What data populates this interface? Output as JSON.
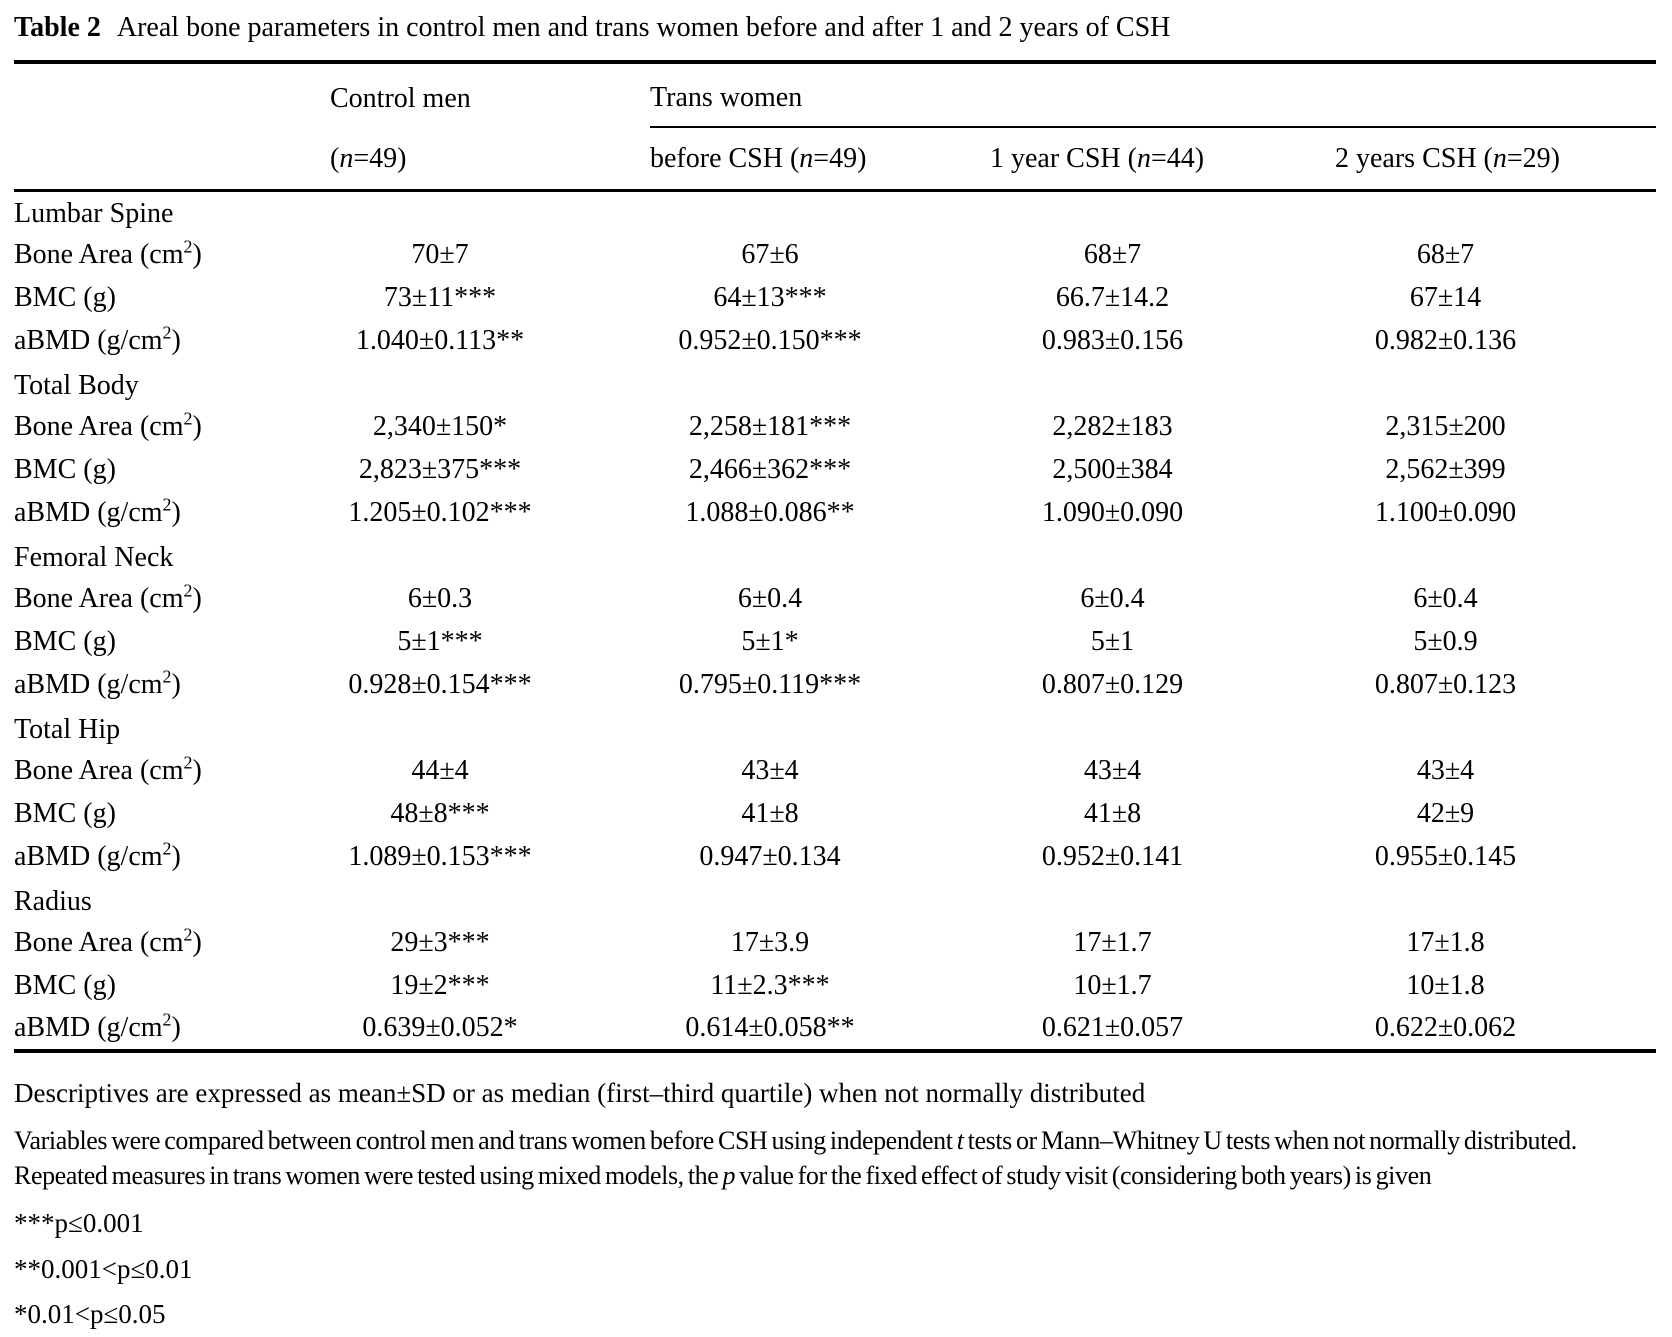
{
  "title": {
    "label": "Table 2",
    "text": "Areal bone parameters in control men and trans women before and after 1 and 2 years of CSH"
  },
  "header": {
    "control_group": "Control men",
    "trans_group": "Trans women",
    "subheaders": [
      "(<i>n</i>=49)",
      "before CSH (<i>n</i>=49)",
      "1 year CSH (<i>n</i>=44)",
      "2 years CSH (<i>n</i>=29)"
    ]
  },
  "table": {
    "sections": [
      {
        "name": "Lumbar Spine",
        "rows": [
          {
            "label": "Bone Area (cm<sup>2</sup>)",
            "values": [
              "70±7",
              "67±6",
              "68±7",
              "68±7"
            ]
          },
          {
            "label": "BMC (g)",
            "values": [
              "73±11***",
              "64±13***",
              "66.7±14.2",
              "67±14"
            ]
          },
          {
            "label": "aBMD (g/cm<sup>2</sup>)",
            "values": [
              "1.040±0.113**",
              "0.952±0.150***",
              "0.983±0.156",
              "0.982±0.136"
            ]
          }
        ]
      },
      {
        "name": "Total Body",
        "rows": [
          {
            "label": "Bone Area (cm<sup>2</sup>)",
            "values": [
              "2,340±150*",
              "2,258±181***",
              "2,282±183",
              "2,315±200"
            ]
          },
          {
            "label": "BMC (g)",
            "values": [
              "2,823±375***",
              "2,466±362***",
              "2,500±384",
              "2,562±399"
            ]
          },
          {
            "label": "aBMD (g/cm<sup>2</sup>)",
            "values": [
              "1.205±0.102***",
              "1.088±0.086**",
              "1.090±0.090",
              "1.100±0.090"
            ]
          }
        ]
      },
      {
        "name": "Femoral Neck",
        "rows": [
          {
            "label": "Bone Area (cm<sup>2</sup>)",
            "values": [
              "6±0.3",
              "6±0.4",
              "6±0.4",
              "6±0.4"
            ]
          },
          {
            "label": "BMC (g)",
            "values": [
              "5±1***",
              "5±1*",
              "5±1",
              "5±0.9"
            ]
          },
          {
            "label": "aBMD (g/cm<sup>2</sup>)",
            "values": [
              "0.928±0.154***",
              "0.795±0.119***",
              "0.807±0.129",
              "0.807±0.123"
            ]
          }
        ]
      },
      {
        "name": "Total Hip",
        "rows": [
          {
            "label": "Bone Area (cm<sup>2</sup>)",
            "values": [
              "44±4",
              "43±4",
              "43±4",
              "43±4"
            ]
          },
          {
            "label": "BMC (g)",
            "values": [
              "48±8***",
              "41±8",
              "41±8",
              "42±9"
            ]
          },
          {
            "label": "aBMD (g/cm<sup>2</sup>)",
            "values": [
              "1.089±0.153***",
              "0.947±0.134",
              "0.952±0.141",
              "0.955±0.145"
            ]
          }
        ]
      },
      {
        "name": "Radius",
        "rows": [
          {
            "label": "Bone Area (cm<sup>2</sup>)",
            "values": [
              "29±3***",
              "17±3.9",
              "17±1.7",
              "17±1.8"
            ]
          },
          {
            "label": "BMC (g)",
            "values": [
              "19±2***",
              "11±2.3***",
              "10±1.7",
              "10±1.8"
            ]
          },
          {
            "label": "aBMD (g/cm<sup>2</sup>)",
            "values": [
              "0.639±0.052*",
              "0.614±0.058**",
              "0.621±0.057",
              "0.622±0.062"
            ]
          }
        ]
      }
    ]
  },
  "footnotes": [
    "Descriptives are expressed as mean±SD or as median (first–third quartile) when not normally distributed",
    "Variables were compared between control men and trans women before CSH using independent <i>t</i> tests or Mann–Whitney U tests when not normally distributed. Repeated measures in trans women were tested using mixed models, the <i>p</i> value for the fixed effect of study visit (considering both years) is given"
  ],
  "significance": [
    "***p≤0.001",
    "**0.001<p≤0.01",
    "*0.01<p≤0.05"
  ]
}
